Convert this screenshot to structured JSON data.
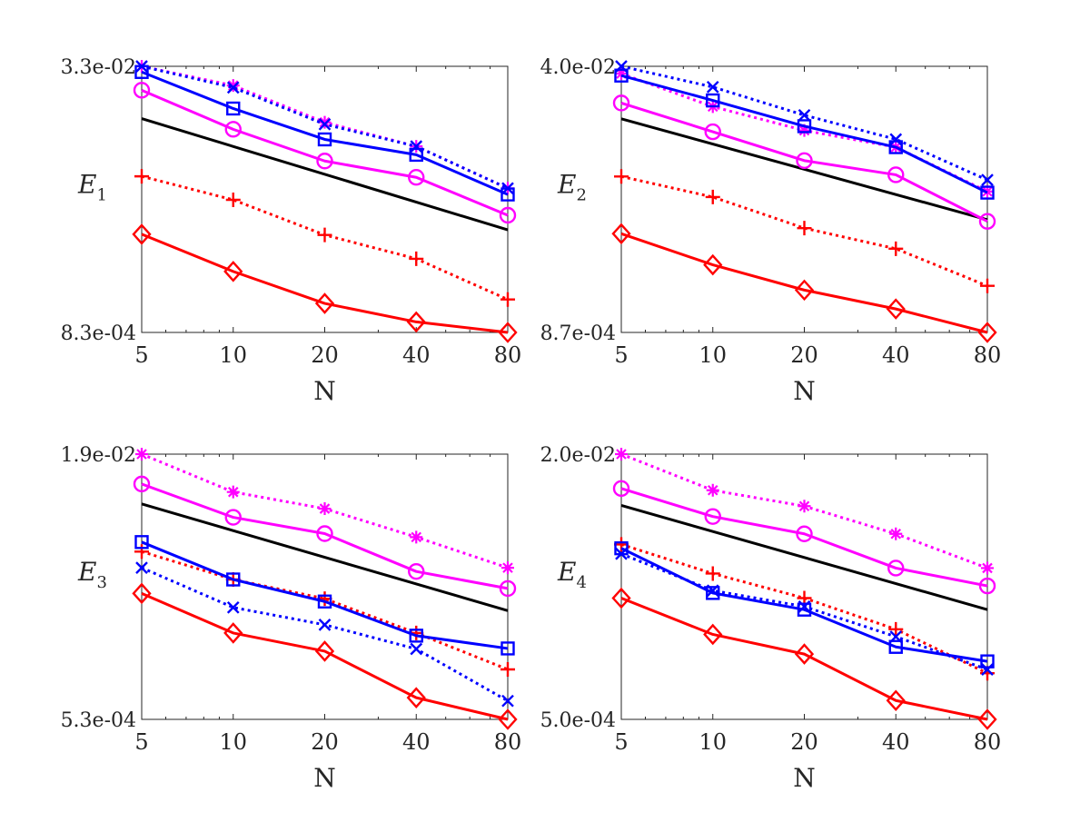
{
  "chart_data": [
    {
      "type": "line",
      "ylabel": "E",
      "ylabel_subscript": "1",
      "xlabel": "N",
      "xscale": "log",
      "yscale": "log",
      "x": [
        5,
        10,
        20,
        40,
        80
      ],
      "xticks": [
        "5",
        "10",
        "20",
        "40",
        "80"
      ],
      "xlim": [
        5,
        80
      ],
      "ylim": [
        0.00083,
        0.033
      ],
      "ytick_labels": [
        "8.3e-04",
        "3.3e-02"
      ],
      "reference": {
        "name": "reference slope",
        "color": "#000000",
        "values": [
          0.016,
          0.00343
        ]
      },
      "series": [
        {
          "name": "red solid diamond",
          "color": "#ff0000",
          "dash": "solid",
          "marker": "diamond",
          "values": [
            0.00323,
            0.00193,
            0.00124,
            0.00096,
            0.00083
          ]
        },
        {
          "name": "red dotted plus",
          "color": "#ff0000",
          "dash": "dotted",
          "marker": "plus",
          "values": [
            0.0072,
            0.0052,
            0.0032,
            0.0023,
            0.00131
          ]
        },
        {
          "name": "magenta solid circle",
          "color": "#ff00ff",
          "dash": "solid",
          "marker": "circle",
          "values": [
            0.0237,
            0.0138,
            0.0089,
            0.0071,
            0.0042
          ]
        },
        {
          "name": "magenta dotted asterisk",
          "color": "#ff00ff",
          "dash": "dotted",
          "marker": "asterisk",
          "values": [
            0.033,
            0.0253,
            0.0152,
            0.0109,
            0.0061
          ]
        },
        {
          "name": "blue solid square",
          "color": "#0000ff",
          "dash": "solid",
          "marker": "square",
          "values": [
            0.0305,
            0.0184,
            0.012,
            0.0097,
            0.0056
          ]
        },
        {
          "name": "blue dotted cross",
          "color": "#0000ff",
          "dash": "dotted",
          "marker": "cross",
          "values": [
            0.033,
            0.0246,
            0.0148,
            0.0109,
            0.0061
          ]
        }
      ]
    },
    {
      "type": "line",
      "ylabel": "E",
      "ylabel_subscript": "2",
      "xlabel": "N",
      "xscale": "log",
      "yscale": "log",
      "x": [
        5,
        10,
        20,
        40,
        80
      ],
      "xticks": [
        "5",
        "10",
        "20",
        "40",
        "80"
      ],
      "xlim": [
        5,
        80
      ],
      "ylim": [
        0.00087,
        0.04
      ],
      "ytick_labels": [
        "8.7e-04",
        "4.0e-02"
      ],
      "reference": {
        "name": "reference slope",
        "color": "#000000",
        "values": [
          0.0188,
          0.0044
        ]
      },
      "series": [
        {
          "name": "red solid diamond",
          "color": "#ff0000",
          "dash": "solid",
          "marker": "diamond",
          "values": [
            0.0036,
            0.0023,
            0.0016,
            0.00122,
            0.00087
          ]
        },
        {
          "name": "red dotted plus",
          "color": "#ff0000",
          "dash": "dotted",
          "marker": "plus",
          "values": [
            0.0082,
            0.0061,
            0.0039,
            0.0029,
            0.0017
          ]
        },
        {
          "name": "magenta solid circle",
          "color": "#ff00ff",
          "dash": "solid",
          "marker": "circle",
          "values": [
            0.0236,
            0.0156,
            0.0103,
            0.0084,
            0.0043
          ]
        },
        {
          "name": "magenta dotted asterisk",
          "color": "#ff00ff",
          "dash": "dotted",
          "marker": "asterisk",
          "values": [
            0.036,
            0.0224,
            0.0159,
            0.0125,
            0.0066
          ]
        },
        {
          "name": "blue solid square",
          "color": "#0000ff",
          "dash": "solid",
          "marker": "square",
          "values": [
            0.035,
            0.0245,
            0.0169,
            0.0125,
            0.0065
          ]
        },
        {
          "name": "blue dotted cross",
          "color": "#0000ff",
          "dash": "dotted",
          "marker": "cross",
          "values": [
            0.04,
            0.0297,
            0.0198,
            0.014,
            0.0078
          ]
        }
      ]
    },
    {
      "type": "line",
      "ylabel": "E",
      "ylabel_subscript": "3",
      "xlabel": "N",
      "xscale": "log",
      "yscale": "log",
      "x": [
        5,
        10,
        20,
        40,
        80
      ],
      "xticks": [
        "5",
        "10",
        "20",
        "40",
        "80"
      ],
      "xlim": [
        5,
        80
      ],
      "ylim": [
        0.00053,
        0.019
      ],
      "ytick_labels": [
        "5.3e-04",
        "1.9e-02"
      ],
      "reference": {
        "name": "reference slope",
        "color": "#000000",
        "values": [
          0.0097,
          0.0023
        ]
      },
      "series": [
        {
          "name": "red solid diamond",
          "color": "#ff0000",
          "dash": "solid",
          "marker": "diamond",
          "values": [
            0.0029,
            0.0017,
            0.00133,
            0.00071,
            0.00053
          ]
        },
        {
          "name": "red dotted plus",
          "color": "#ff0000",
          "dash": "dotted",
          "marker": "plus",
          "values": [
            0.0051,
            0.0035,
            0.0027,
            0.0017,
            0.00104
          ]
        },
        {
          "name": "magenta solid circle",
          "color": "#ff00ff",
          "dash": "solid",
          "marker": "circle",
          "values": [
            0.0127,
            0.0081,
            0.0065,
            0.0039,
            0.0031
          ]
        },
        {
          "name": "magenta dotted asterisk",
          "color": "#ff00ff",
          "dash": "dotted",
          "marker": "asterisk",
          "values": [
            0.019,
            0.0114,
            0.0091,
            0.0062,
            0.0041
          ]
        },
        {
          "name": "blue solid square",
          "color": "#0000ff",
          "dash": "solid",
          "marker": "square",
          "values": [
            0.0058,
            0.0035,
            0.0026,
            0.00164,
            0.00138
          ]
        },
        {
          "name": "blue dotted cross",
          "color": "#0000ff",
          "dash": "dotted",
          "marker": "cross",
          "values": [
            0.0041,
            0.0024,
            0.0019,
            0.00137,
            0.00068
          ]
        }
      ]
    },
    {
      "type": "line",
      "ylabel": "E",
      "ylabel_subscript": "4",
      "xlabel": "N",
      "xscale": "log",
      "yscale": "log",
      "x": [
        5,
        10,
        20,
        40,
        80
      ],
      "xticks": [
        "5",
        "10",
        "20",
        "40",
        "80"
      ],
      "xlim": [
        5,
        80
      ],
      "ylim": [
        0.0005,
        0.02
      ],
      "ytick_labels": [
        "5.0e-04",
        "2.0e-02"
      ],
      "reference": {
        "name": "reference slope",
        "color": "#000000",
        "values": [
          0.0098,
          0.0023
        ]
      },
      "series": [
        {
          "name": "red solid diamond",
          "color": "#ff0000",
          "dash": "solid",
          "marker": "diamond",
          "values": [
            0.0027,
            0.00163,
            0.00124,
            0.00065,
            0.0005
          ]
        },
        {
          "name": "red dotted plus",
          "color": "#ff0000",
          "dash": "dotted",
          "marker": "plus",
          "values": [
            0.0057,
            0.0038,
            0.0027,
            0.00175,
            0.00095
          ]
        },
        {
          "name": "magenta solid circle",
          "color": "#ff00ff",
          "dash": "solid",
          "marker": "circle",
          "values": [
            0.0124,
            0.0084,
            0.0066,
            0.0041,
            0.0032
          ]
        },
        {
          "name": "magenta dotted asterisk",
          "color": "#ff00ff",
          "dash": "dotted",
          "marker": "asterisk",
          "values": [
            0.02,
            0.0121,
            0.0097,
            0.0066,
            0.0041
          ]
        },
        {
          "name": "blue solid square",
          "color": "#0000ff",
          "dash": "solid",
          "marker": "square",
          "values": [
            0.0054,
            0.0029,
            0.0023,
            0.00137,
            0.00112
          ]
        },
        {
          "name": "blue dotted cross",
          "color": "#0000ff",
          "dash": "dotted",
          "marker": "cross",
          "values": [
            0.005,
            0.003,
            0.0024,
            0.00158,
            0.001
          ]
        }
      ]
    }
  ]
}
